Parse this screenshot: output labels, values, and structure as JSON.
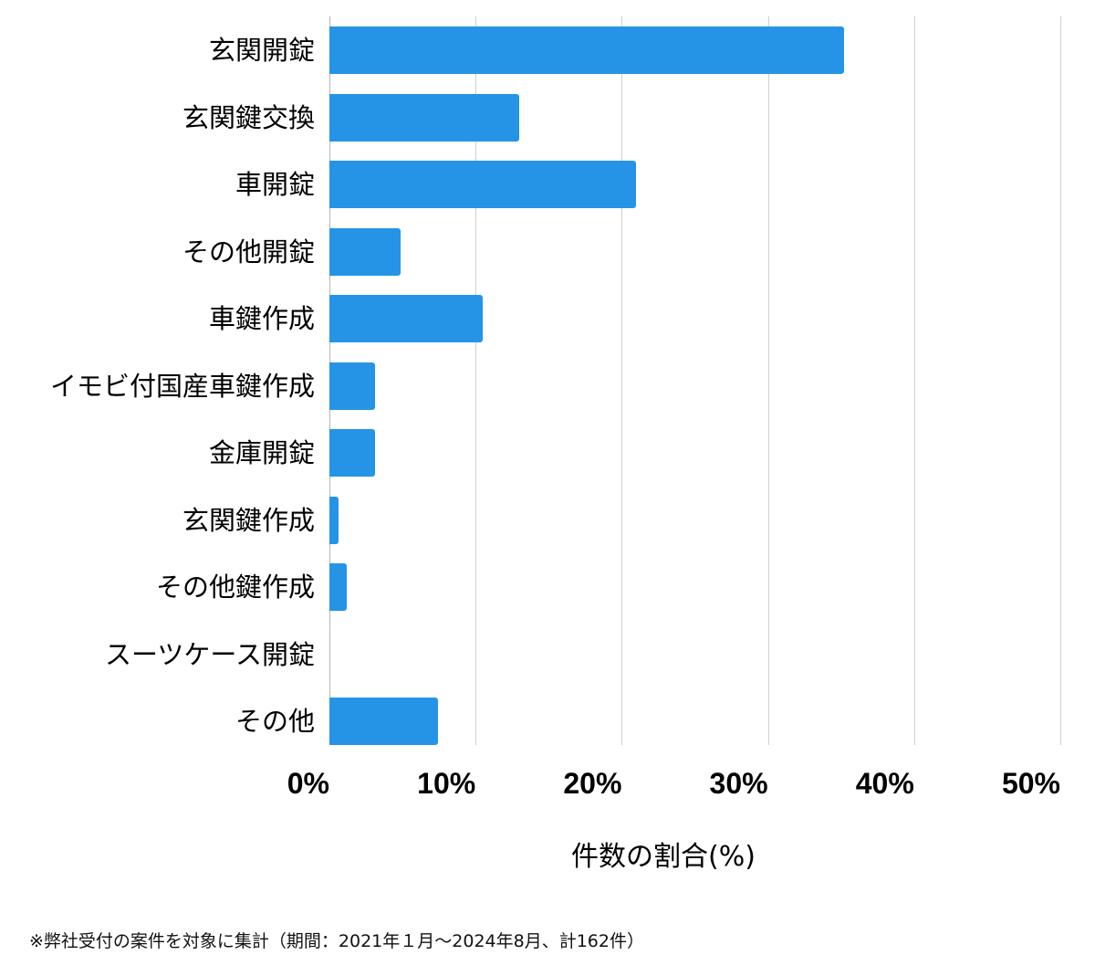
{
  "chart_data": {
    "type": "bar",
    "orientation": "horizontal",
    "title": "",
    "categories": [
      "玄関開錠",
      "玄関鍵交換",
      "車開錠",
      "その他開錠",
      "車鍵作成",
      "イモビ付国産車鍵作成",
      "金庫開錠",
      "玄関鍵作成",
      "その他鍵作成",
      "スーツケース開錠",
      "その他"
    ],
    "values": [
      35.2,
      13.0,
      21.0,
      4.9,
      10.5,
      3.1,
      3.1,
      0.6,
      1.2,
      0.0,
      7.4
    ],
    "xlabel": "件数の割合(%)",
    "ylabel": "",
    "xlim": [
      0,
      50
    ],
    "xticks": [
      "0%",
      "10%",
      "20%",
      "30%",
      "40%",
      "50%"
    ],
    "grid": true,
    "legend": null,
    "bar_color": "#2694e6",
    "annotation": "※弊社受付の案件を対象に集計（期間：2021年１月～2024年8月、計162件）"
  },
  "axis": {
    "ticks": [
      "0%",
      "10%",
      "20%",
      "30%",
      "40%",
      "50%"
    ],
    "title": "件数の割合(%)"
  },
  "footnote": "※弊社受付の案件を対象に集計（期間：2021年１月～2024年8月、計162件）"
}
